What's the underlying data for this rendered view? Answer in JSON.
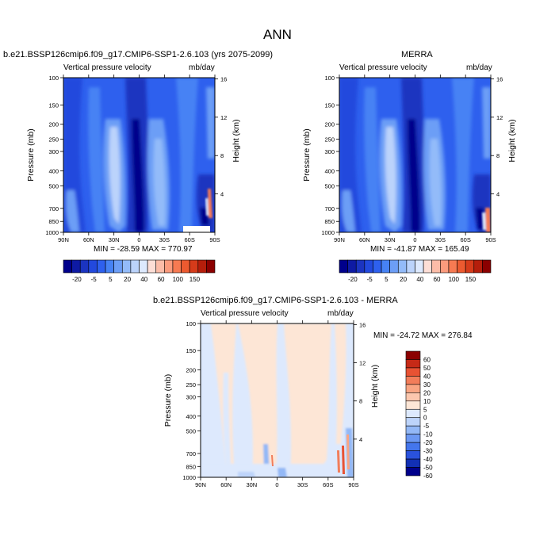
{
  "page": {
    "title": "ANN"
  },
  "colors": {
    "case_palette": [
      "#00008b",
      "#0e1aa3",
      "#1b34c0",
      "#2249dd",
      "#2e60ee",
      "#4682f4",
      "#6c9ef6",
      "#93bbf9",
      "#bbd3fb",
      "#dde9fd",
      "#fdded6",
      "#fcbca8",
      "#fb9b7d",
      "#f77a52",
      "#ec5a30",
      "#d63b1a",
      "#b51e0b",
      "#8b0000"
    ],
    "diff_palette": [
      "#00008b",
      "#1230b5",
      "#2a52dd",
      "#4476ec",
      "#6c98f2",
      "#93b8f6",
      "#bdd4fa",
      "#dde9fd",
      "#fde6d6",
      "#fcc7ae",
      "#f9a583",
      "#f27d5a",
      "#e85233",
      "#c62a17",
      "#8b0000"
    ]
  },
  "chart_data": [
    {
      "type": "heatmap",
      "title": "b.e21.BSSP126cmip6.f09_g17.CMIP6-SSP1-2.6.103 (yrs 2075-2099)",
      "variable": "Vertical pressure velocity",
      "units": "mb/day",
      "ylabel": "Pressure (mb)",
      "ylabel_right": "Height (km)",
      "x_ticks": [
        "90N",
        "60N",
        "30N",
        "0",
        "30S",
        "60S",
        "90S"
      ],
      "y_ticks": [
        100,
        150,
        200,
        250,
        300,
        400,
        500,
        700,
        850,
        1000
      ],
      "height_ticks": [
        16,
        12,
        8,
        4
      ],
      "stats": "MIN = -28.59  MAX = 770.97",
      "colorbar_labels": [
        "-20",
        "-5",
        "5",
        "20",
        "40",
        "60",
        "100",
        "150"
      ],
      "colorbar_levels": [
        "-35",
        "-30",
        "-25",
        "-20",
        "-15",
        "-10",
        "-5",
        "0",
        "5",
        "10",
        "20",
        "30",
        "40",
        "50",
        "60",
        "80",
        "100",
        "150"
      ]
    },
    {
      "type": "heatmap",
      "title": "MERRA",
      "variable": "Vertical pressure velocity",
      "units": "mb/day",
      "ylabel": "Pressure (mb)",
      "ylabel_right": "Height (km)",
      "x_ticks": [
        "90N",
        "60N",
        "30N",
        "0",
        "30S",
        "60S",
        "90S"
      ],
      "y_ticks": [
        100,
        150,
        200,
        250,
        300,
        400,
        500,
        700,
        850,
        1000
      ],
      "height_ticks": [
        16,
        12,
        8,
        4
      ],
      "stats": "MIN = -41.87  MAX = 165.49",
      "colorbar_labels": [
        "-20",
        "-5",
        "5",
        "20",
        "40",
        "60",
        "100",
        "150"
      ],
      "colorbar_levels": [
        "-35",
        "-30",
        "-25",
        "-20",
        "-15",
        "-10",
        "-5",
        "0",
        "5",
        "10",
        "20",
        "30",
        "40",
        "50",
        "60",
        "80",
        "100",
        "150"
      ]
    },
    {
      "type": "heatmap",
      "title": "b.e21.BSSP126cmip6.f09_g17.CMIP6-SSP1-2.6.103 - MERRA",
      "variable": "Vertical pressure velocity",
      "units": "mb/day",
      "ylabel": "Pressure (mb)",
      "ylabel_right": "Height (km)",
      "x_ticks": [
        "90N",
        "60N",
        "30N",
        "0",
        "30S",
        "60S",
        "90S"
      ],
      "y_ticks": [
        100,
        150,
        200,
        250,
        300,
        400,
        500,
        700,
        850,
        1000
      ],
      "height_ticks": [
        16,
        12,
        8,
        4
      ],
      "stats": "MIN = -24.72  MAX = 276.84",
      "colorbar_labels": [
        "60",
        "50",
        "40",
        "30",
        "20",
        "10",
        "5",
        "0",
        "-5",
        "-10",
        "-20",
        "-30",
        "-40",
        "-50",
        "-60"
      ]
    }
  ]
}
